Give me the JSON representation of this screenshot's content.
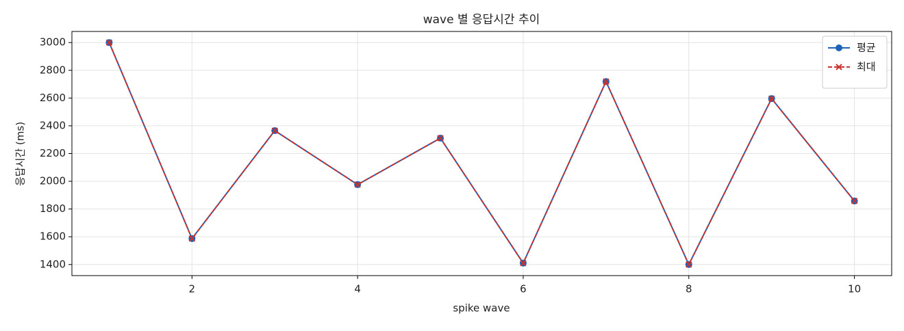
{
  "chart_data": {
    "type": "line",
    "title": "wave 별 응답시간 추이",
    "x_label": "spike wave",
    "y_label": "응답시간 (ms)",
    "x": [
      1,
      2,
      3,
      4,
      5,
      6,
      7,
      8,
      9,
      10
    ],
    "series": [
      {
        "name": "평균",
        "color": "#1f63b8",
        "marker": "circle",
        "dash": false,
        "values": [
          3000,
          1587,
          2365,
          1976,
          2311,
          1410,
          2719,
          1400,
          2596,
          1858
        ]
      },
      {
        "name": "최대",
        "color": "#c8322f",
        "marker": "x",
        "dash": true,
        "values": [
          3000,
          1587,
          2365,
          1976,
          2311,
          1410,
          2719,
          1400,
          2596,
          1858
        ]
      }
    ],
    "xlim": [
      0.55,
      10.45
    ],
    "xticks": [
      2,
      4,
      6,
      8,
      10
    ],
    "ylim": [
      1320,
      3080
    ],
    "yticks": [
      1400,
      1600,
      1800,
      2000,
      2200,
      2400,
      2600,
      2800,
      3000
    ],
    "grid": true,
    "legend": "upper-right"
  }
}
